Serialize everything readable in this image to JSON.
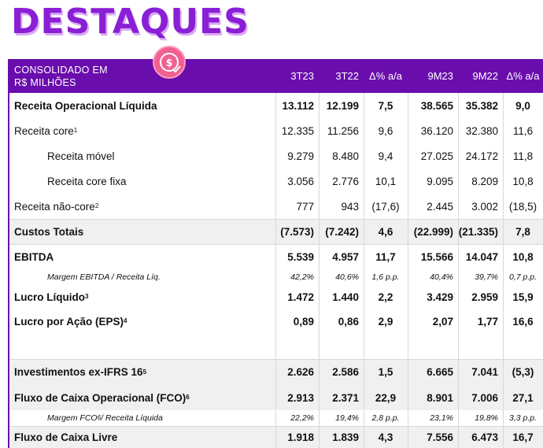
{
  "title": "DESTAQUES",
  "header": {
    "label_line1": "CONSOLIDADO EM",
    "label_line2": "R$ MILHÕES",
    "columns": [
      "3T23",
      "3T22",
      "Δ% a/a",
      "9M23",
      "9M22",
      "Δ% a/a"
    ]
  },
  "badge_icon": "money-chart-icon",
  "rows": [
    {
      "label": "Receita Operacional Líquida",
      "sup": "",
      "values": [
        "13.112",
        "12.199",
        "7,5",
        "38.565",
        "35.382",
        "9,0"
      ]
    },
    {
      "label": "Receita core",
      "sup": "1",
      "values": [
        "12.335",
        "11.256",
        "9,6",
        "36.120",
        "32.380",
        "11,6"
      ]
    },
    {
      "label": "Receita móvel",
      "sup": "",
      "values": [
        "9.279",
        "8.480",
        "9,4",
        "27.025",
        "24.172",
        "11,8"
      ]
    },
    {
      "label": "Receita core fixa",
      "sup": "",
      "values": [
        "3.056",
        "2.776",
        "10,1",
        "9.095",
        "8.209",
        "10,8"
      ]
    },
    {
      "label": "Receita não-core",
      "sup": "2",
      "values": [
        "777",
        "943",
        "(17,6)",
        "2.445",
        "3.002",
        "(18,5)"
      ]
    },
    {
      "label": "Custos Totais",
      "sup": "",
      "values": [
        "(7.573)",
        "(7.242)",
        "4,6",
        "(22.999)",
        "(21.335)",
        "7,8"
      ]
    },
    {
      "label": "EBITDA",
      "sup": "",
      "values": [
        "5.539",
        "4.957",
        "11,7",
        "15.566",
        "14.047",
        "10,8"
      ]
    },
    {
      "label": "Margem EBITDA / Receita Líq.",
      "sup": "",
      "values": [
        "42,2%",
        "40,6%",
        "1,6 p.p.",
        "40,4%",
        "39,7%",
        "0,7 p.p."
      ]
    },
    {
      "label": "Lucro Líquido",
      "sup": "3",
      "values": [
        "1.472",
        "1.440",
        "2,2",
        "3.429",
        "2.959",
        "15,9"
      ]
    },
    {
      "label": "Lucro por Ação (EPS)",
      "sup": "4",
      "values": [
        "0,89",
        "0,86",
        "2,9",
        "2,07",
        "1,77",
        "16,6"
      ]
    },
    {
      "label": "Investimentos ex-IFRS 16",
      "sup": "5",
      "values": [
        "2.626",
        "2.586",
        "1,5",
        "6.665",
        "7.041",
        "(5,3)"
      ]
    },
    {
      "label": "Fluxo de Caixa Operacional (FCO)",
      "sup": "6",
      "values": [
        "2.913",
        "2.371",
        "22,9",
        "8.901",
        "7.006",
        "27,1"
      ]
    },
    {
      "label": "Margem FCO",
      "sup": "6",
      "label_suffix": " / Receita Líquida",
      "values": [
        "22,2%",
        "19,4%",
        "2,8 p.p.",
        "23,1%",
        "19,8%",
        "3,3 p.p."
      ]
    },
    {
      "label": "Fluxo de Caixa Livre",
      "sup": "",
      "values": [
        "1.918",
        "1.839",
        "4,3",
        "7.556",
        "6.473",
        "16,7"
      ]
    }
  ],
  "colors": {
    "title": "#8a1fd6",
    "header_bg": "#6a0dad",
    "badge": "#f06090"
  }
}
